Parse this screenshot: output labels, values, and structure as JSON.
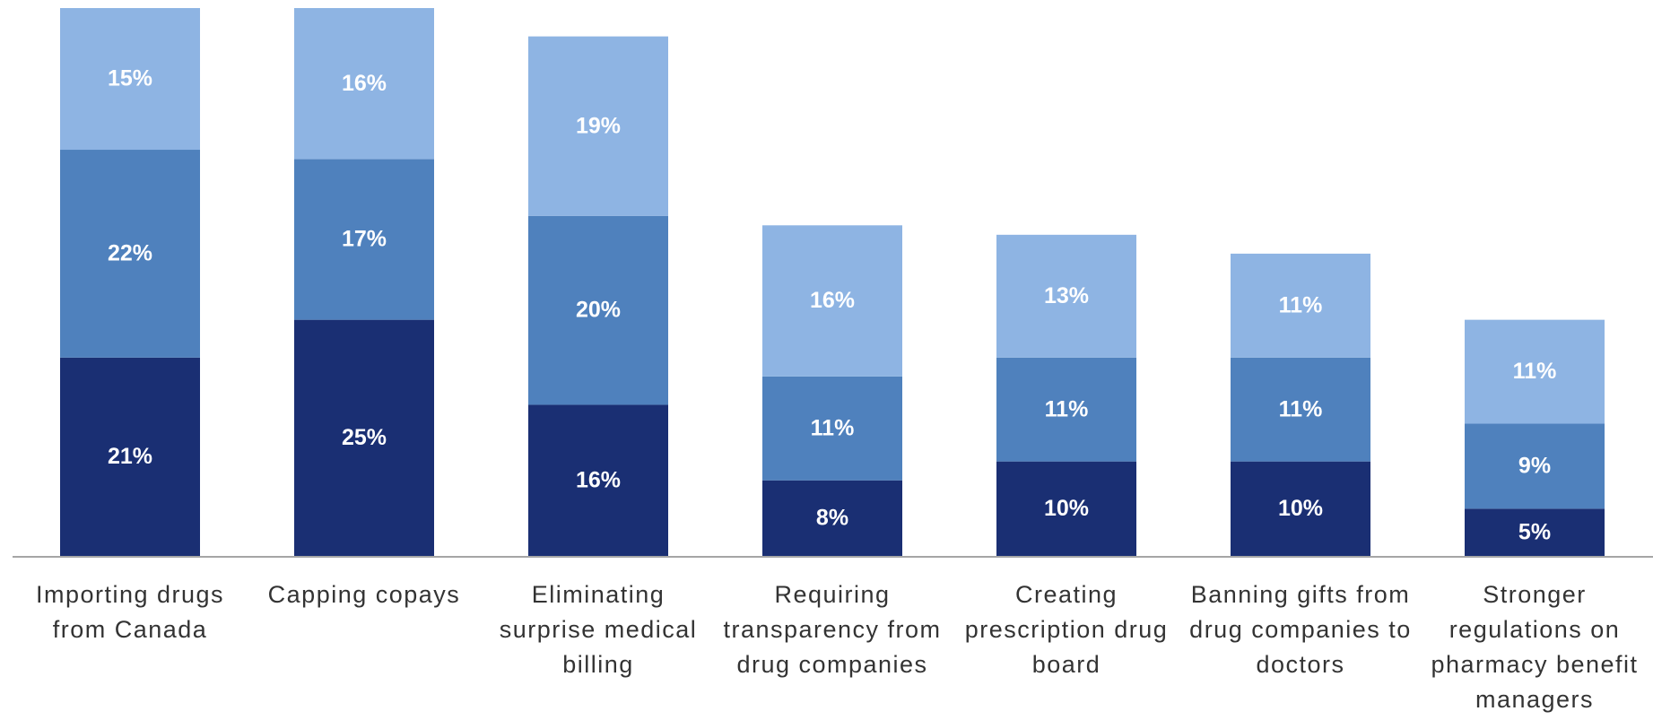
{
  "chart_data": {
    "type": "stacked_bar",
    "categories": [
      "Importing drugs from Canada",
      "Capping copays",
      "Eliminating surprise medical billing",
      "Requiring transparency from drug companies",
      "Creating prescription drug board",
      "Banning gifts from drug companies to doctors",
      "Stronger regulations on pharmacy benefit managers"
    ],
    "value_suffix_labels": null,
    "series": [
      {
        "color": "#1a2f73",
        "values": [
          21,
          25,
          16,
          8,
          10,
          10,
          5
        ],
        "value_labels": [
          "21%",
          "25%",
          "16%",
          "8%",
          "10%",
          "10%",
          "5%"
        ]
      },
      {
        "color": "#4f81bd",
        "values": [
          22,
          17,
          20,
          11,
          11,
          11,
          9
        ],
        "value_labels": [
          "22%",
          "17%",
          "20%",
          "11%",
          "11%",
          "11%",
          "9%"
        ]
      },
      {
        "color": "#8eb4e3",
        "values": [
          15,
          16,
          19,
          16,
          13,
          11,
          11
        ],
        "value_labels": [
          "15%",
          "16%",
          "19%",
          "16%",
          "13%",
          "11%",
          "11%"
        ]
      }
    ]
  }
}
